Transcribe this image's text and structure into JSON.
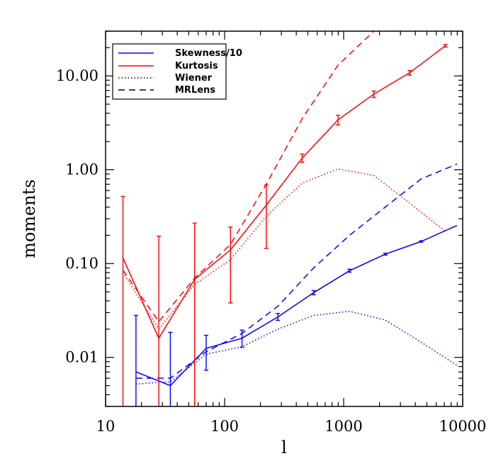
{
  "chart_data": {
    "type": "line",
    "xlabel": "l",
    "ylabel": "moments",
    "xscale": "log",
    "yscale": "log",
    "xlim": [
      10,
      10000
    ],
    "ylim": [
      0.003,
      30
    ],
    "x_ticks": [
      10,
      100,
      1000,
      10000
    ],
    "x_tick_labels": [
      "10",
      "100",
      "1000",
      "10000"
    ],
    "y_ticks": [
      0.01,
      0.1,
      1,
      10
    ],
    "y_tick_labels": [
      "0.01",
      "0.10",
      "1.00",
      "10.00"
    ],
    "legend_position": "top-left",
    "legend": [
      {
        "label": "Skewness/10",
        "color": "#0000ff",
        "style": "solid"
      },
      {
        "label": "Kurtosis",
        "color": "#ff0000",
        "style": "solid"
      },
      {
        "label": "Wiener",
        "color": "#000000",
        "style": "dotted"
      },
      {
        "label": "MRLens",
        "color": "#000000",
        "style": "dashed"
      }
    ],
    "series": [
      {
        "name": "Kurtosis",
        "color": "#ff0000",
        "style": "solid",
        "x": [
          14,
          28,
          56,
          112,
          224,
          448,
          896,
          1792,
          3584,
          7168
        ],
        "y": [
          0.115,
          0.016,
          0.068,
          0.14,
          0.42,
          1.33,
          3.4,
          6.4,
          10.8,
          21
        ]
      },
      {
        "name": "Kurtosis MRLens",
        "color": "#ff0000",
        "style": "dashed",
        "x": [
          14,
          28,
          56,
          112,
          224,
          448,
          896,
          1792,
          2800
        ],
        "y": [
          0.085,
          0.024,
          0.07,
          0.16,
          0.7,
          3.5,
          13,
          30,
          60
        ]
      },
      {
        "name": "Kurtosis Wiener",
        "color": "#ff0000",
        "style": "dotted",
        "x": [
          14,
          28,
          56,
          112,
          224,
          448,
          896,
          1792,
          3584,
          7168
        ],
        "y": [
          0.08,
          0.02,
          0.06,
          0.11,
          0.32,
          0.72,
          1.02,
          0.87,
          0.44,
          0.22
        ]
      },
      {
        "name": "Skewness/10",
        "color": "#0000ff",
        "style": "solid",
        "x": [
          18,
          35,
          70,
          140,
          280,
          560,
          1120,
          2240,
          4480,
          8960
        ],
        "y": [
          0.007,
          0.005,
          0.0125,
          0.016,
          0.027,
          0.049,
          0.084,
          0.126,
          0.172,
          0.255
        ]
      },
      {
        "name": "Skewness/10 MRLens",
        "color": "#0000ff",
        "style": "dashed",
        "x": [
          18,
          35,
          70,
          140,
          280,
          560,
          1120,
          2240,
          4480,
          8960
        ],
        "y": [
          0.006,
          0.006,
          0.0115,
          0.018,
          0.035,
          0.09,
          0.2,
          0.4,
          0.8,
          1.15
        ]
      },
      {
        "name": "Skewness/10 Wiener",
        "color": "#0000ff",
        "style": "dotted",
        "x": [
          18,
          35,
          70,
          140,
          280,
          560,
          1120,
          2240,
          4480,
          8960
        ],
        "y": [
          0.0052,
          0.0055,
          0.0108,
          0.013,
          0.02,
          0.028,
          0.031,
          0.025,
          0.0145,
          0.0082
        ]
      }
    ],
    "error_bars": [
      {
        "series": "Kurtosis",
        "color": "#ff0000",
        "points": [
          {
            "x": 14,
            "low": 0.002,
            "high": 0.52
          },
          {
            "x": 28,
            "low": 0.002,
            "high": 0.196
          },
          {
            "x": 56,
            "low": 0.002,
            "high": 0.27
          },
          {
            "x": 112,
            "low": 0.038,
            "high": 0.245
          },
          {
            "x": 224,
            "low": 0.145,
            "high": 0.69
          },
          {
            "x": 448,
            "low": 1.2,
            "high": 1.47
          },
          {
            "x": 896,
            "low": 3.0,
            "high": 3.8
          },
          {
            "x": 1792,
            "low": 5.9,
            "high": 6.9
          },
          {
            "x": 3584,
            "low": 10.2,
            "high": 11.4
          },
          {
            "x": 7168,
            "low": 20.3,
            "high": 21.7
          }
        ]
      },
      {
        "series": "Skewness/10",
        "color": "#0000ff",
        "points": [
          {
            "x": 18,
            "low": 0.002,
            "high": 0.028
          },
          {
            "x": 35,
            "low": 0.002,
            "high": 0.0185
          },
          {
            "x": 70,
            "low": 0.0073,
            "high": 0.0172
          },
          {
            "x": 140,
            "low": 0.0128,
            "high": 0.0195
          },
          {
            "x": 280,
            "low": 0.0248,
            "high": 0.0294
          },
          {
            "x": 560,
            "low": 0.0465,
            "high": 0.0515
          },
          {
            "x": 1120,
            "low": 0.081,
            "high": 0.087
          },
          {
            "x": 2240,
            "low": 0.123,
            "high": 0.129
          },
          {
            "x": 4480,
            "low": 0.169,
            "high": 0.175
          }
        ]
      }
    ]
  }
}
